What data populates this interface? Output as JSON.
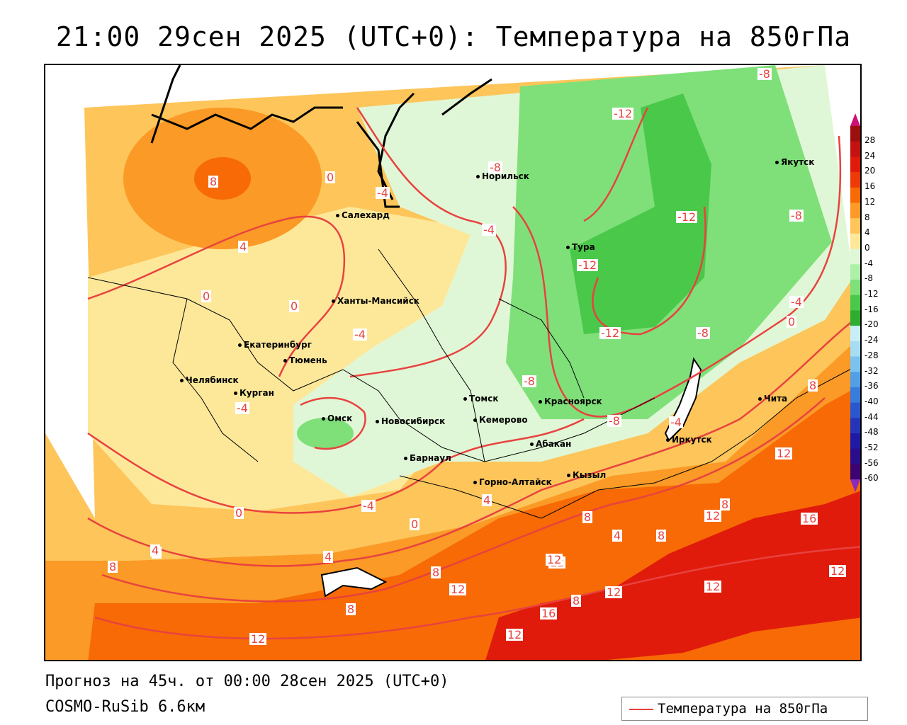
{
  "title": "21:00 29сен 2025 (UTC+0): Температура на 850гПа",
  "footer": {
    "forecast": "Прогноз на 45ч. от 00:00 28сен 2025 (UTC+0)",
    "model": "COSMO-RuSib 6.6км"
  },
  "legend": {
    "label": "Температура на 850гПа",
    "line_color": "#e8423f"
  },
  "colorbar": {
    "ticks": [
      "28",
      "24",
      "20",
      "16",
      "12",
      "8",
      "4",
      "0",
      "-4",
      "-8",
      "-12",
      "-16",
      "-20",
      "-24",
      "-28",
      "-32",
      "-36",
      "-40",
      "-44",
      "-48",
      "-52",
      "-56",
      "-60"
    ],
    "colors": [
      "#9b0f0f",
      "#c41111",
      "#e01b0c",
      "#ee3a07",
      "#f76a05",
      "#fb9a26",
      "#fdc55a",
      "#fde89a",
      "#e0f7d7",
      "#aef0a8",
      "#7fe07a",
      "#4ac84a",
      "#2eae2e",
      "#c8eef9",
      "#a7dcf5",
      "#7cc2ef",
      "#539fe6",
      "#3a7cdc",
      "#2b57cc",
      "#2535b8",
      "#1e1aa3",
      "#2a0d8a",
      "#3b0470"
    ],
    "top_arrow": "#cc1177",
    "bottom_arrow": "#8a2bbd"
  },
  "cities": [
    {
      "name": "Норильск"
    },
    {
      "name": "Якутск"
    },
    {
      "name": "Салехард"
    },
    {
      "name": "Тура"
    },
    {
      "name": "Ханты-Мансийск"
    },
    {
      "name": "Екатеринбург"
    },
    {
      "name": "Тюмень"
    },
    {
      "name": "Челябинск"
    },
    {
      "name": "Курган"
    },
    {
      "name": "Омск"
    },
    {
      "name": "Новосибирск"
    },
    {
      "name": "Томск"
    },
    {
      "name": "Кемерово"
    },
    {
      "name": "Красноярск"
    },
    {
      "name": "Барнаул"
    },
    {
      "name": "Абакан"
    },
    {
      "name": "Горно-Алтайск"
    },
    {
      "name": "Кызыл"
    },
    {
      "name": "Иркутск"
    },
    {
      "name": "Чита"
    }
  ],
  "contour_labels": [
    "-8",
    "-12",
    "-8",
    "8",
    "0",
    "-4",
    "-4",
    "4",
    "-12",
    "-12",
    "-8",
    "0",
    "0",
    "-4",
    "-12",
    "-4",
    "-8",
    "0",
    "-4",
    "-8",
    "-8",
    "8",
    "-4",
    "-4",
    "4",
    "12",
    "4",
    "0",
    "8",
    "12",
    "8",
    "16",
    "0",
    "4",
    "8",
    "12",
    "8",
    "12",
    "12",
    "8",
    "12",
    "8",
    "12",
    "16",
    "12",
    "12",
    "12",
    "4",
    "8",
    "4"
  ]
}
